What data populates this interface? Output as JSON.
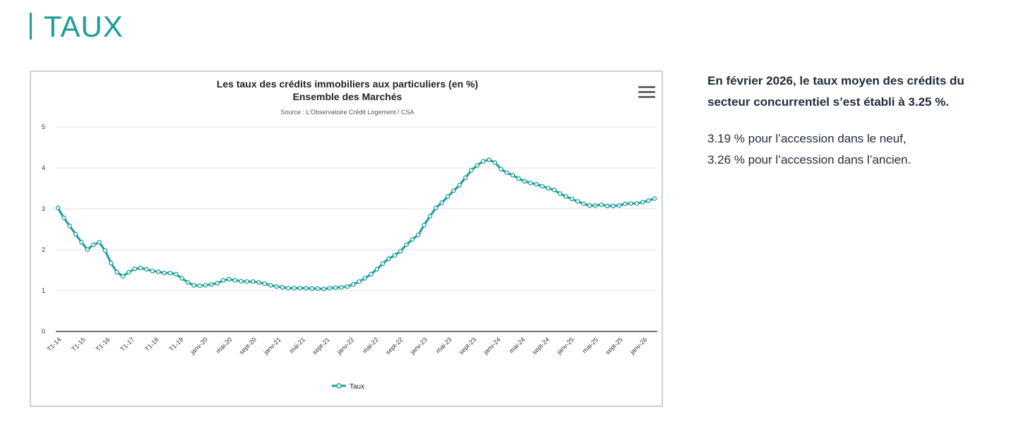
{
  "page": {
    "title": "TAUX"
  },
  "info": {
    "headline": "En février 2026, le taux moyen des crédits du secteur concurrentiel s’est établi à 3.25 %.",
    "line1": "3.19 % pour l’accession dans le neuf,",
    "line2": "3.26 % pour l’accession dans l’ancien."
  },
  "colors": {
    "accent": "#1a9e9a",
    "text": "#1f2a3a"
  },
  "chart_data": {
    "type": "line",
    "title": "Les taux des crédits immobiliers aux particuliers (en %)",
    "subtitle": "Ensemble des Marchés",
    "source": "Source : L’Observatoire Crédit Logement / CSA",
    "xlabel": "",
    "ylabel": "",
    "ylim": [
      0,
      5
    ],
    "yticks": [
      0,
      1,
      2,
      3,
      4,
      5
    ],
    "grid": true,
    "legend": "bottom-center",
    "x_tick_labels": [
      "T1-14",
      "T1-15",
      "T1-16",
      "T1-17",
      "T1-18",
      "T1-19",
      "janv-20",
      "mai-20",
      "sept-20",
      "janv-21",
      "mai-21",
      "sept-21",
      "janv-22",
      "mai-22",
      "sept-22",
      "janv-23",
      "mai-23",
      "sept-23",
      "janv-24",
      "mai-24",
      "sept-24",
      "janv-25",
      "mai-25",
      "sept-25",
      "janv-26"
    ],
    "series": [
      {
        "name": "Taux",
        "color": "#1a9e9a",
        "values": [
          3.02,
          2.78,
          2.58,
          2.38,
          2.18,
          2.0,
          2.12,
          2.18,
          1.98,
          1.67,
          1.45,
          1.35,
          1.45,
          1.53,
          1.55,
          1.52,
          1.48,
          1.46,
          1.43,
          1.43,
          1.4,
          1.3,
          1.2,
          1.13,
          1.12,
          1.13,
          1.15,
          1.18,
          1.25,
          1.28,
          1.25,
          1.23,
          1.22,
          1.22,
          1.2,
          1.17,
          1.13,
          1.1,
          1.08,
          1.06,
          1.06,
          1.06,
          1.06,
          1.05,
          1.05,
          1.04,
          1.06,
          1.07,
          1.08,
          1.1,
          1.15,
          1.22,
          1.3,
          1.4,
          1.52,
          1.66,
          1.78,
          1.86,
          1.96,
          2.12,
          2.25,
          2.36,
          2.6,
          2.82,
          3.02,
          3.15,
          3.3,
          3.44,
          3.58,
          3.76,
          3.94,
          4.06,
          4.16,
          4.2,
          4.13,
          3.97,
          3.88,
          3.82,
          3.74,
          3.67,
          3.63,
          3.6,
          3.55,
          3.5,
          3.46,
          3.37,
          3.3,
          3.24,
          3.18,
          3.12,
          3.08,
          3.08,
          3.1,
          3.07,
          3.07,
          3.08,
          3.12,
          3.13,
          3.13,
          3.16,
          3.2,
          3.25
        ]
      }
    ]
  }
}
